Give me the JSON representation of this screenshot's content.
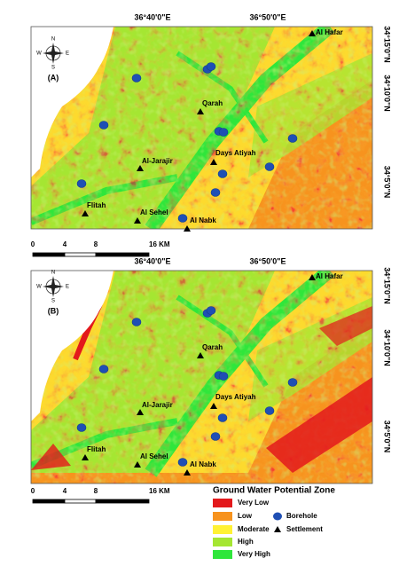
{
  "maps": [
    {
      "panel_label": "(A)",
      "top_labels": [
        "36°40'0\"E",
        "36°50'0\"E"
      ],
      "right_labels": [
        "34°15'0\"N",
        "34°10'0\"N",
        "34°5'0\"N"
      ],
      "compass": {
        "n": "N",
        "s": "S",
        "e": "E",
        "w": "W"
      },
      "settlements": [
        "Al Hafar",
        "Qarah",
        "Days Atiyah",
        "Al-Jarajir",
        "Flitah",
        "Al Sehel",
        "Al Nabk"
      ],
      "scale_bar": [
        "0",
        "4",
        "8",
        "16 KM"
      ]
    },
    {
      "panel_label": "(B)",
      "top_labels": [
        "36°40'0\"E",
        "36°50'0\"E"
      ],
      "right_labels": [
        "34°15'0\"N",
        "34°10'0\"N",
        "34°5'0\"N"
      ],
      "compass": {
        "n": "N",
        "s": "S",
        "e": "E",
        "w": "W"
      },
      "settlements": [
        "Al Hafar",
        "Qarah",
        "Days Atiyah",
        "Al-Jarajir",
        "Flitah",
        "Al Sehel",
        "Al Nabk"
      ],
      "scale_bar": [
        "0",
        "4",
        "8",
        "16 KM"
      ]
    }
  ],
  "legend": {
    "title": "Ground Water Potential Zone",
    "zones": [
      {
        "label": "Very Low",
        "color": "#e3191c"
      },
      {
        "label": "Low",
        "color": "#f7931e"
      },
      {
        "label": "Moderate",
        "color": "#fff234"
      },
      {
        "label": "High",
        "color": "#a5e632"
      },
      {
        "label": "Very High",
        "color": "#2fe63b"
      }
    ],
    "borehole": "Borehole",
    "settlement": "Settlement"
  }
}
